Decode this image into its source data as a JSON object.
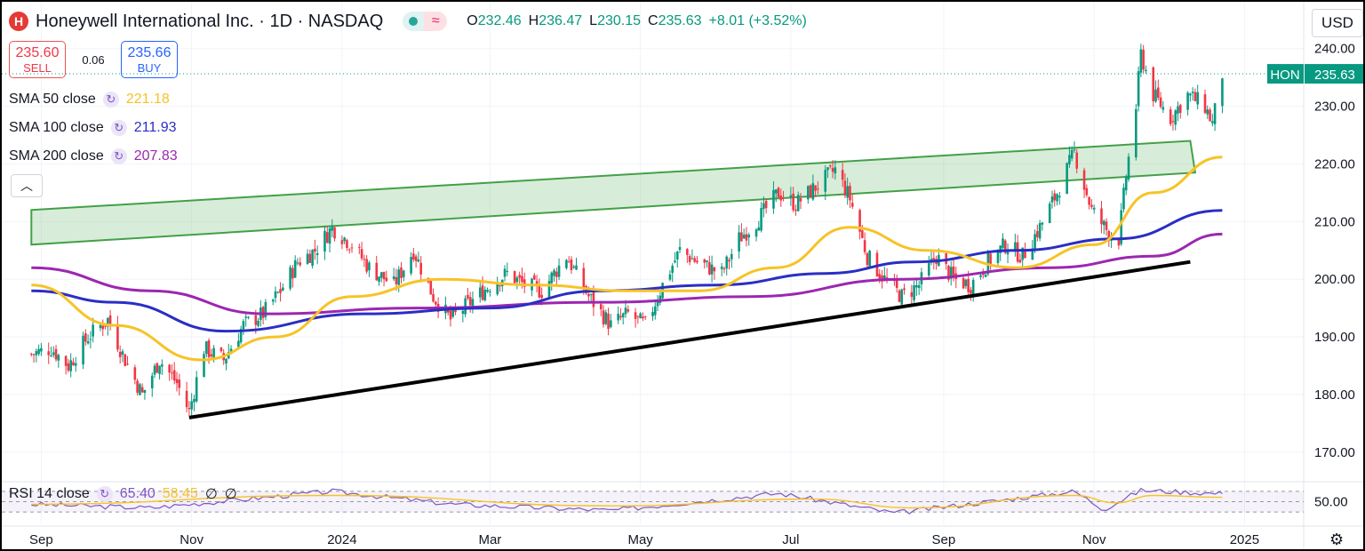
{
  "header": {
    "title": "Honeywell International Inc. · 1D · NASDAQ",
    "ohlc": [
      {
        "k": "O",
        "v": "232.46"
      },
      {
        "k": "H",
        "v": "236.47"
      },
      {
        "k": "L",
        "v": "230.15"
      },
      {
        "k": "C",
        "v": "235.63"
      }
    ],
    "change": "+8.01 (+3.52%)",
    "logo_letter": "H",
    "wave_symbol": "≈"
  },
  "trade": {
    "sell_price": "235.60",
    "sell_label": "SELL",
    "spread": "0.06",
    "buy_price": "235.66",
    "buy_label": "BUY"
  },
  "indicators": [
    {
      "name": "SMA 50 close",
      "value": "221.18",
      "color": "#f7c325"
    },
    {
      "name": "SMA 100 close",
      "value": "211.93",
      "color": "#2a2ec4"
    },
    {
      "name": "SMA 200 close",
      "value": "207.83",
      "color": "#9c27b0"
    }
  ],
  "rsi": {
    "name": "RSI 14 close",
    "value": "65.40",
    "ma": "58.45",
    "e1": "∅",
    "e2": "∅",
    "level_label": "50.00"
  },
  "currency": "USD",
  "price_tag": {
    "symbol": "HON",
    "price": "235.63"
  },
  "chart_data": {
    "type": "candlestick",
    "symbol": "HON",
    "interval": "1D",
    "y_ticks": [
      "240.00",
      "230.00",
      "220.00",
      "210.00",
      "200.00",
      "190.00",
      "180.00",
      "170.00"
    ],
    "ylim": [
      165.5,
      243.5
    ],
    "x_ticks": [
      "Sep",
      "Nov",
      "2024",
      "Mar",
      "May",
      "Jul",
      "Sep",
      "Nov",
      "2025"
    ],
    "series_close": [
      [
        "2023-08-28",
        187
      ],
      [
        "2023-09-05",
        188
      ],
      [
        "2023-09-12",
        185
      ],
      [
        "2023-09-20",
        190
      ],
      [
        "2023-09-28",
        193
      ],
      [
        "2023-10-05",
        186
      ],
      [
        "2023-10-12",
        180
      ],
      [
        "2023-10-19",
        186
      ],
      [
        "2023-10-26",
        182
      ],
      [
        "2023-10-31",
        177
      ],
      [
        "2023-11-06",
        188
      ],
      [
        "2023-11-14",
        186
      ],
      [
        "2023-11-22",
        192
      ],
      [
        "2023-11-30",
        194
      ],
      [
        "2023-12-07",
        198
      ],
      [
        "2023-12-14",
        203
      ],
      [
        "2023-12-21",
        205
      ],
      [
        "2023-12-28",
        209
      ],
      [
        "2024-01-05",
        206
      ],
      [
        "2024-01-12",
        202
      ],
      [
        "2024-01-22",
        199
      ],
      [
        "2024-01-30",
        205
      ],
      [
        "2024-02-07",
        197
      ],
      [
        "2024-02-14",
        193
      ],
      [
        "2024-02-22",
        196
      ],
      [
        "2024-03-01",
        199
      ],
      [
        "2024-03-08",
        201
      ],
      [
        "2024-03-15",
        199
      ],
      [
        "2024-03-22",
        198
      ],
      [
        "2024-04-01",
        204
      ],
      [
        "2024-04-10",
        197
      ],
      [
        "2024-04-19",
        192
      ],
      [
        "2024-04-26",
        194
      ],
      [
        "2024-05-03",
        192
      ],
      [
        "2024-05-10",
        199
      ],
      [
        "2024-05-17",
        205
      ],
      [
        "2024-05-24",
        203
      ],
      [
        "2024-06-03",
        201
      ],
      [
        "2024-06-10",
        207
      ],
      [
        "2024-06-17",
        210
      ],
      [
        "2024-06-26",
        215
      ],
      [
        "2024-07-03",
        213
      ],
      [
        "2024-07-11",
        216
      ],
      [
        "2024-07-19",
        219
      ],
      [
        "2024-07-25",
        214
      ],
      [
        "2024-08-01",
        204
      ],
      [
        "2024-08-08",
        200
      ],
      [
        "2024-08-15",
        197
      ],
      [
        "2024-08-22",
        199
      ],
      [
        "2024-08-29",
        204
      ],
      [
        "2024-09-05",
        200
      ],
      [
        "2024-09-12",
        199
      ],
      [
        "2024-09-19",
        203
      ],
      [
        "2024-09-26",
        206
      ],
      [
        "2024-10-03",
        204
      ],
      [
        "2024-10-10",
        209
      ],
      [
        "2024-10-17",
        215
      ],
      [
        "2024-10-24",
        222
      ],
      [
        "2024-10-31",
        212
      ],
      [
        "2024-11-07",
        208
      ],
      [
        "2024-11-11",
        207
      ],
      [
        "2024-11-14",
        218
      ],
      [
        "2024-11-18",
        230
      ],
      [
        "2024-11-20",
        239
      ],
      [
        "2024-11-25",
        232
      ],
      [
        "2024-12-02",
        228
      ],
      [
        "2024-12-09",
        232
      ],
      [
        "2024-12-16",
        230
      ],
      [
        "2024-12-19",
        227
      ],
      [
        "2024-12-23",
        235.63
      ]
    ],
    "sma50": [
      [
        "2023-08-28",
        199
      ],
      [
        "2023-10-01",
        192
      ],
      [
        "2023-11-05",
        186
      ],
      [
        "2023-12-05",
        190
      ],
      [
        "2024-01-05",
        197
      ],
      [
        "2024-02-10",
        200
      ],
      [
        "2024-03-20",
        199
      ],
      [
        "2024-04-25",
        198
      ],
      [
        "2024-05-25",
        198
      ],
      [
        "2024-06-25",
        202
      ],
      [
        "2024-07-25",
        209
      ],
      [
        "2024-08-25",
        205
      ],
      [
        "2024-10-01",
        202
      ],
      [
        "2024-11-01",
        206
      ],
      [
        "2024-11-25",
        215
      ],
      [
        "2024-12-23",
        221.18
      ]
    ],
    "sma100": [
      [
        "2023-08-28",
        198
      ],
      [
        "2023-10-01",
        196
      ],
      [
        "2023-11-15",
        191
      ],
      [
        "2024-01-10",
        194
      ],
      [
        "2024-03-01",
        195
      ],
      [
        "2024-04-15",
        198
      ],
      [
        "2024-06-01",
        199
      ],
      [
        "2024-07-15",
        201
      ],
      [
        "2024-08-20",
        203
      ],
      [
        "2024-10-01",
        205
      ],
      [
        "2024-11-10",
        207
      ],
      [
        "2024-12-23",
        211.93
      ]
    ],
    "sma200": [
      [
        "2023-08-28",
        202
      ],
      [
        "2023-10-15",
        198
      ],
      [
        "2023-12-01",
        194
      ],
      [
        "2024-02-01",
        195
      ],
      [
        "2024-04-15",
        196
      ],
      [
        "2024-06-15",
        197
      ],
      [
        "2024-08-15",
        200
      ],
      [
        "2024-10-15",
        202
      ],
      [
        "2024-11-25",
        204
      ],
      [
        "2024-12-23",
        207.83
      ]
    ],
    "channel": {
      "upper": [
        [
          "2023-08-28",
          212
        ],
        [
          "2024-12-10",
          224
        ]
      ],
      "lower": [
        [
          "2023-08-28",
          206
        ],
        [
          "2024-12-12",
          218.5
        ]
      ]
    },
    "support_line": [
      [
        "2023-10-31",
        176
      ],
      [
        "2024-12-10",
        203
      ]
    ],
    "rsi_ylim": [
      20,
      80
    ],
    "rsi_levels": [
      70,
      50,
      30
    ],
    "rsi": [
      [
        "2023-08-28",
        45
      ],
      [
        "2023-10-15",
        38
      ],
      [
        "2023-12-28",
        70
      ],
      [
        "2024-02-15",
        45
      ],
      [
        "2024-04-19",
        33
      ],
      [
        "2024-06-26",
        66
      ],
      [
        "2024-08-12",
        28
      ],
      [
        "2024-10-24",
        70
      ],
      [
        "2024-11-05",
        35
      ],
      [
        "2024-11-20",
        72
      ],
      [
        "2024-12-23",
        65.4
      ]
    ],
    "rsi_ma": [
      [
        "2023-08-28",
        45
      ],
      [
        "2023-12-28",
        62
      ],
      [
        "2024-04-20",
        42
      ],
      [
        "2024-07-10",
        55
      ],
      [
        "2024-08-20",
        38
      ],
      [
        "2024-10-24",
        62
      ],
      [
        "2024-11-10",
        48
      ],
      [
        "2024-11-25",
        62
      ],
      [
        "2024-12-23",
        58.45
      ]
    ],
    "current_price": 235.63
  }
}
